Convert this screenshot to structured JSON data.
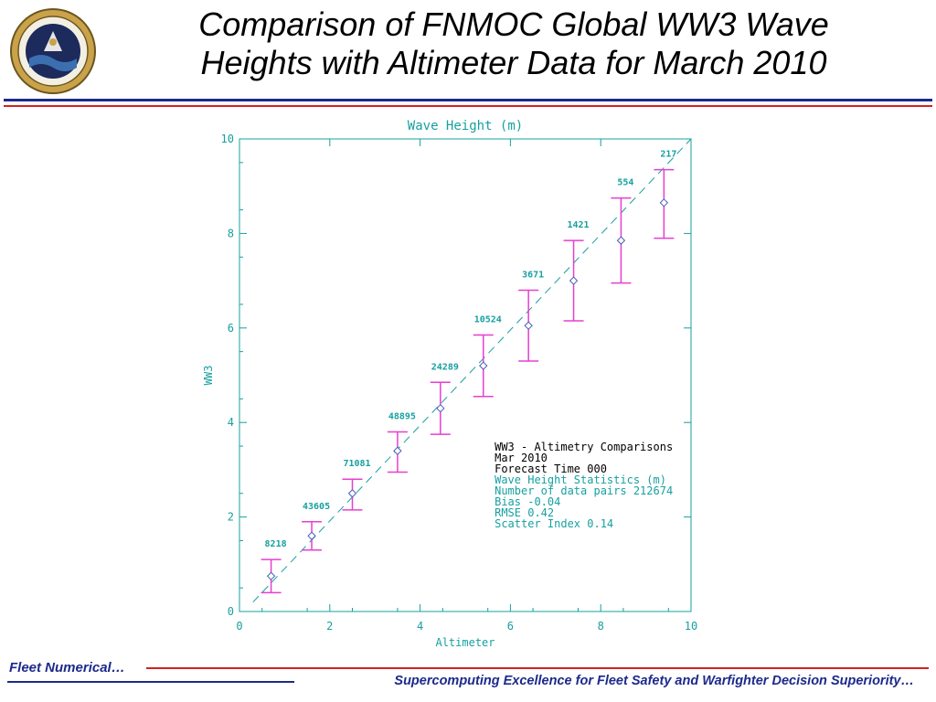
{
  "slide": {
    "title_line1": "Comparison of FNMOC Global WW3 Wave",
    "title_line2": "Heights with Altimeter Data for March 2010",
    "footer_left": "Fleet Numerical…",
    "footer_right": "Supercomputing Excellence for Fleet Safety and Warfighter Decision Superiority…",
    "logo_icon": "fnmoc-seal-icon"
  },
  "colors": {
    "axis": "#17a0a0",
    "error_bar": "#e83ed0",
    "marker": "#4a5fb8",
    "reference_line": "#17a0a0",
    "rule_blue": "#1c2a8c",
    "rule_red": "#d42020"
  },
  "chart_data": {
    "type": "scatter",
    "title": "Wave Height (m)",
    "xlabel": "Altimeter",
    "ylabel": "WW3",
    "xlim": [
      0,
      10
    ],
    "ylim": [
      0,
      10
    ],
    "xticks": [
      0,
      2,
      4,
      6,
      8,
      10
    ],
    "yticks": [
      0,
      2,
      4,
      6,
      8,
      10
    ],
    "reference_line": "y = x (dashed)",
    "grid": false,
    "points": [
      {
        "x": 0.7,
        "y": 0.75,
        "low": 0.4,
        "high": 1.1,
        "count": "8218"
      },
      {
        "x": 1.6,
        "y": 1.6,
        "low": 1.3,
        "high": 1.9,
        "count": "43605"
      },
      {
        "x": 2.5,
        "y": 2.5,
        "low": 2.15,
        "high": 2.8,
        "count": "71081"
      },
      {
        "x": 3.5,
        "y": 3.4,
        "low": 2.95,
        "high": 3.8,
        "count": "48895"
      },
      {
        "x": 4.45,
        "y": 4.3,
        "low": 3.75,
        "high": 4.85,
        "count": "24289"
      },
      {
        "x": 5.4,
        "y": 5.2,
        "low": 4.55,
        "high": 5.85,
        "count": "10524"
      },
      {
        "x": 6.4,
        "y": 6.05,
        "low": 5.3,
        "high": 6.8,
        "count": "3671"
      },
      {
        "x": 7.4,
        "y": 7.0,
        "low": 6.15,
        "high": 7.85,
        "count": "1421"
      },
      {
        "x": 8.45,
        "y": 7.85,
        "low": 6.95,
        "high": 8.75,
        "count": "554"
      },
      {
        "x": 9.4,
        "y": 8.65,
        "low": 7.9,
        "high": 9.35,
        "count": "217"
      }
    ],
    "annotation": {
      "header_lines": [
        "WW3 - Altimetry Comparisons",
        "Mar 2010",
        "Forecast Time 000"
      ],
      "stat_lines": [
        "Wave Height Statistics (m)",
        "Number of data pairs 212674",
        "Bias -0.04",
        "RMSE  0.42",
        "Scatter Index  0.14"
      ]
    }
  }
}
